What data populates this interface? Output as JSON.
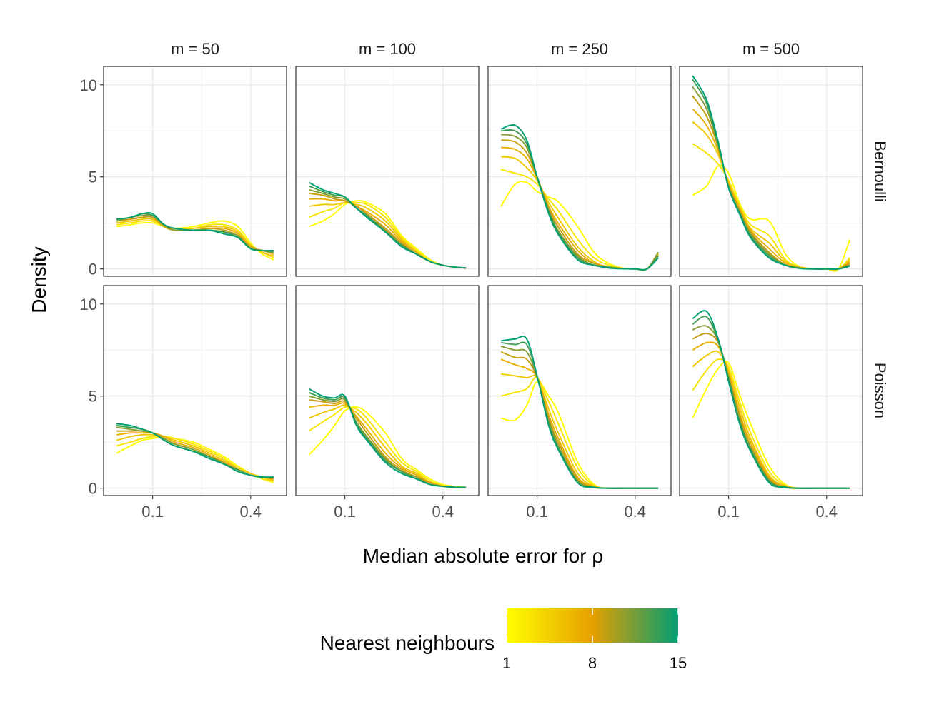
{
  "chart_data": {
    "type": "line",
    "kind": "faceted density curves",
    "xlabel": "Median absolute error for ρ",
    "ylabel": "Density",
    "x_scale": "sqrt",
    "xlim": [
      0.025,
      0.56
    ],
    "ylim": [
      -0.4,
      11.0
    ],
    "x_ticks": [
      0.1,
      0.4
    ],
    "x_tick_labels": [
      "0.1",
      "0.4"
    ],
    "x_minor_ticks": [
      0.025,
      0.225
    ],
    "y_ticks": [
      0,
      5,
      10
    ],
    "y_tick_labels": [
      "0",
      "5",
      "10"
    ],
    "columns": [
      "m = 50",
      "m = 100",
      "m = 250",
      "m = 500"
    ],
    "rows": [
      "Bernoulli",
      "Poisson"
    ],
    "legend": {
      "title": "Nearest neighbours",
      "min": 1,
      "max": 15,
      "breaks": [
        1,
        8,
        15
      ],
      "break_labels": [
        "1",
        "8",
        "15"
      ],
      "colors": [
        "#ffff00",
        "#e69f00",
        "#009e73"
      ]
    },
    "k_values": [
      1,
      3,
      5,
      7,
      9,
      11,
      13,
      15
    ],
    "x_points": [
      0.04,
      0.06,
      0.08,
      0.1,
      0.125,
      0.15,
      0.2,
      0.25,
      0.3,
      0.35,
      0.4,
      0.45,
      0.5
    ],
    "panels": [
      {
        "row": "Bernoulli",
        "col": "m = 50",
        "curves": [
          [
            2.3,
            2.4,
            2.5,
            2.5,
            2.3,
            2.2,
            2.3,
            2.5,
            2.6,
            2.3,
            1.4,
            0.8,
            0.5
          ],
          [
            2.4,
            2.5,
            2.6,
            2.6,
            2.3,
            2.2,
            2.2,
            2.4,
            2.4,
            2.1,
            1.3,
            0.9,
            0.6
          ],
          [
            2.5,
            2.6,
            2.7,
            2.7,
            2.3,
            2.1,
            2.2,
            2.3,
            2.3,
            2.0,
            1.3,
            0.9,
            0.7
          ],
          [
            2.6,
            2.7,
            2.8,
            2.8,
            2.3,
            2.1,
            2.1,
            2.2,
            2.2,
            1.9,
            1.2,
            1.0,
            0.8
          ],
          [
            2.6,
            2.7,
            2.8,
            2.8,
            2.3,
            2.1,
            2.1,
            2.2,
            2.1,
            1.8,
            1.2,
            1.0,
            0.9
          ],
          [
            2.6,
            2.8,
            2.9,
            2.9,
            2.4,
            2.1,
            2.1,
            2.1,
            2.0,
            1.8,
            1.1,
            1.0,
            0.9
          ],
          [
            2.7,
            2.8,
            3.0,
            2.9,
            2.4,
            2.2,
            2.1,
            2.1,
            2.0,
            1.7,
            1.1,
            1.0,
            0.9
          ],
          [
            2.7,
            2.8,
            3.0,
            3.0,
            2.4,
            2.2,
            2.1,
            2.1,
            1.9,
            1.7,
            1.1,
            1.0,
            1.0
          ]
        ]
      },
      {
        "row": "Bernoulli",
        "col": "m = 100",
        "curves": [
          [
            2.3,
            2.6,
            3.0,
            3.5,
            3.7,
            3.6,
            3.0,
            1.8,
            1.1,
            0.5,
            0.2,
            0.1,
            0.05
          ],
          [
            2.8,
            3.1,
            3.3,
            3.6,
            3.6,
            3.5,
            2.8,
            1.7,
            1.0,
            0.4,
            0.2,
            0.1,
            0.05
          ],
          [
            3.4,
            3.5,
            3.5,
            3.6,
            3.5,
            3.3,
            2.6,
            1.6,
            0.9,
            0.4,
            0.2,
            0.1,
            0.05
          ],
          [
            3.8,
            3.8,
            3.7,
            3.7,
            3.4,
            3.1,
            2.4,
            1.5,
            0.9,
            0.4,
            0.2,
            0.1,
            0.05
          ],
          [
            4.1,
            4.0,
            3.8,
            3.7,
            3.4,
            3.0,
            2.2,
            1.4,
            0.8,
            0.4,
            0.2,
            0.1,
            0.05
          ],
          [
            4.3,
            4.1,
            3.9,
            3.8,
            3.3,
            2.9,
            2.1,
            1.3,
            0.8,
            0.4,
            0.2,
            0.1,
            0.05
          ],
          [
            4.5,
            4.2,
            4.0,
            3.9,
            3.3,
            2.9,
            2.0,
            1.3,
            0.8,
            0.4,
            0.2,
            0.1,
            0.05
          ],
          [
            4.7,
            4.3,
            4.1,
            3.9,
            3.3,
            2.8,
            2.0,
            1.2,
            0.8,
            0.4,
            0.2,
            0.1,
            0.05
          ]
        ]
      },
      {
        "row": "Bernoulli",
        "col": "m = 250",
        "curves": [
          [
            3.4,
            4.6,
            4.7,
            4.2,
            3.9,
            3.6,
            2.3,
            0.9,
            0.3,
            0.05,
            0.0,
            0.0,
            0.8
          ],
          [
            5.4,
            5.2,
            5.0,
            4.6,
            3.8,
            3.1,
            1.6,
            0.6,
            0.2,
            0.03,
            0.0,
            0.0,
            0.7
          ],
          [
            6.1,
            6.0,
            5.5,
            4.8,
            3.6,
            2.7,
            1.2,
            0.4,
            0.1,
            0.03,
            0.0,
            0.0,
            0.8
          ],
          [
            6.6,
            6.5,
            6.0,
            4.9,
            3.4,
            2.4,
            1.0,
            0.3,
            0.1,
            0.02,
            0.0,
            0.0,
            0.8
          ],
          [
            7.0,
            6.9,
            6.3,
            5.0,
            3.3,
            2.2,
            0.8,
            0.3,
            0.1,
            0.02,
            0.0,
            0.0,
            0.9
          ],
          [
            7.3,
            7.2,
            6.6,
            5.0,
            3.2,
            2.0,
            0.7,
            0.2,
            0.1,
            0.02,
            0.0,
            0.0,
            0.9
          ],
          [
            7.5,
            7.5,
            6.8,
            5.0,
            3.1,
            1.9,
            0.6,
            0.2,
            0.1,
            0.02,
            0.0,
            0.0,
            0.7
          ],
          [
            7.6,
            7.8,
            7.0,
            5.0,
            3.0,
            1.8,
            0.5,
            0.2,
            0.05,
            0.01,
            0.0,
            0.0,
            0.6
          ]
        ]
      },
      {
        "row": "Bernoulli",
        "col": "m = 500",
        "curves": [
          [
            4.0,
            4.5,
            5.6,
            5.2,
            3.5,
            2.7,
            2.6,
            0.8,
            0.1,
            0.0,
            0.0,
            0.0,
            1.6
          ],
          [
            6.8,
            6.3,
            5.7,
            4.8,
            3.4,
            2.4,
            1.8,
            0.5,
            0.1,
            0.0,
            0.0,
            0.0,
            0.6
          ],
          [
            8.0,
            7.3,
            6.2,
            4.7,
            3.3,
            2.2,
            1.4,
            0.4,
            0.1,
            0.0,
            0.0,
            0.0,
            0.5
          ],
          [
            8.7,
            7.8,
            6.4,
            4.6,
            3.2,
            2.1,
            1.1,
            0.3,
            0.05,
            0.0,
            0.0,
            0.0,
            0.4
          ],
          [
            9.4,
            8.3,
            6.6,
            4.5,
            3.1,
            2.0,
            0.9,
            0.2,
            0.05,
            0.0,
            0.0,
            0.0,
            0.3
          ],
          [
            9.9,
            8.7,
            6.7,
            4.5,
            3.0,
            1.9,
            0.8,
            0.2,
            0.05,
            0.0,
            0.0,
            0.0,
            0.2
          ],
          [
            10.3,
            9.0,
            6.8,
            4.4,
            3.0,
            1.8,
            0.7,
            0.2,
            0.03,
            0.0,
            0.0,
            0.0,
            0.2
          ],
          [
            10.5,
            9.2,
            6.9,
            4.4,
            2.9,
            1.7,
            0.6,
            0.2,
            0.03,
            0.0,
            0.0,
            0.0,
            0.15
          ]
        ]
      },
      {
        "row": "Poisson",
        "col": "m = 50",
        "curves": [
          [
            1.9,
            2.3,
            2.6,
            2.7,
            2.8,
            2.7,
            2.5,
            2.1,
            1.7,
            1.2,
            0.8,
            0.5,
            0.3
          ],
          [
            2.3,
            2.5,
            2.7,
            2.8,
            2.8,
            2.7,
            2.4,
            2.0,
            1.6,
            1.1,
            0.8,
            0.5,
            0.4
          ],
          [
            2.6,
            2.8,
            2.9,
            2.9,
            2.8,
            2.6,
            2.3,
            1.9,
            1.5,
            1.1,
            0.8,
            0.6,
            0.4
          ],
          [
            2.9,
            3.0,
            3.0,
            3.0,
            2.8,
            2.5,
            2.2,
            1.8,
            1.4,
            1.0,
            0.7,
            0.6,
            0.5
          ],
          [
            3.1,
            3.1,
            3.1,
            3.0,
            2.7,
            2.4,
            2.1,
            1.7,
            1.4,
            1.0,
            0.7,
            0.6,
            0.5
          ],
          [
            3.3,
            3.2,
            3.1,
            3.0,
            2.7,
            2.4,
            2.1,
            1.7,
            1.3,
            1.0,
            0.7,
            0.6,
            0.6
          ],
          [
            3.4,
            3.3,
            3.2,
            3.0,
            2.6,
            2.3,
            2.0,
            1.7,
            1.3,
            1.0,
            0.7,
            0.6,
            0.6
          ],
          [
            3.5,
            3.4,
            3.2,
            3.0,
            2.6,
            2.3,
            2.0,
            1.6,
            1.3,
            0.9,
            0.7,
            0.6,
            0.6
          ]
        ]
      },
      {
        "row": "Poisson",
        "col": "m = 100",
        "curves": [
          [
            1.8,
            2.6,
            3.4,
            4.2,
            4.4,
            4.1,
            3.0,
            1.6,
            1.0,
            0.5,
            0.2,
            0.1,
            0.05
          ],
          [
            3.1,
            3.6,
            4.0,
            4.4,
            4.3,
            3.8,
            2.5,
            1.4,
            0.9,
            0.4,
            0.15,
            0.1,
            0.05
          ],
          [
            3.8,
            4.1,
            4.3,
            4.5,
            4.1,
            3.5,
            2.2,
            1.2,
            0.8,
            0.3,
            0.1,
            0.05,
            0.05
          ],
          [
            4.4,
            4.5,
            4.5,
            4.6,
            3.9,
            3.2,
            1.9,
            1.1,
            0.7,
            0.3,
            0.1,
            0.05,
            0.05
          ],
          [
            4.8,
            4.7,
            4.6,
            4.7,
            3.8,
            3.0,
            1.7,
            1.0,
            0.6,
            0.3,
            0.1,
            0.05,
            0.05
          ],
          [
            5.0,
            4.8,
            4.7,
            4.8,
            3.6,
            2.8,
            1.6,
            0.9,
            0.6,
            0.2,
            0.1,
            0.05,
            0.05
          ],
          [
            5.2,
            4.9,
            4.8,
            4.9,
            3.5,
            2.7,
            1.5,
            0.9,
            0.5,
            0.2,
            0.1,
            0.05,
            0.05
          ],
          [
            5.4,
            5.0,
            4.9,
            5.0,
            3.4,
            2.6,
            1.4,
            0.8,
            0.5,
            0.2,
            0.1,
            0.05,
            0.05
          ]
        ]
      },
      {
        "row": "Poisson",
        "col": "m = 250",
        "curves": [
          [
            3.8,
            3.7,
            4.5,
            5.8,
            5.0,
            4.0,
            1.4,
            0.2,
            0.0,
            0.0,
            0.0,
            0.0,
            0.0
          ],
          [
            5.0,
            5.2,
            5.4,
            6.0,
            4.7,
            3.4,
            1.1,
            0.15,
            0.0,
            0.0,
            0.0,
            0.0,
            0.0
          ],
          [
            6.2,
            6.1,
            6.0,
            6.0,
            4.3,
            2.9,
            0.8,
            0.1,
            0.0,
            0.0,
            0.0,
            0.0,
            0.0
          ],
          [
            7.0,
            6.7,
            6.5,
            6.0,
            4.0,
            2.6,
            0.6,
            0.1,
            0.0,
            0.0,
            0.0,
            0.0,
            0.0
          ],
          [
            7.4,
            7.1,
            7.0,
            6.0,
            3.8,
            2.4,
            0.5,
            0.05,
            0.0,
            0.0,
            0.0,
            0.0,
            0.0
          ],
          [
            7.7,
            7.5,
            7.4,
            6.0,
            3.7,
            2.2,
            0.4,
            0.05,
            0.0,
            0.0,
            0.0,
            0.0,
            0.0
          ],
          [
            7.9,
            7.8,
            7.8,
            6.1,
            3.5,
            2.1,
            0.3,
            0.05,
            0.0,
            0.0,
            0.0,
            0.0,
            0.0
          ],
          [
            8.0,
            8.1,
            8.1,
            6.1,
            3.4,
            2.0,
            0.3,
            0.05,
            0.0,
            0.0,
            0.0,
            0.0,
            0.0
          ]
        ]
      },
      {
        "row": "Poisson",
        "col": "m = 500",
        "curves": [
          [
            3.8,
            5.4,
            6.5,
            6.8,
            5.0,
            3.5,
            1.2,
            0.2,
            0.0,
            0.0,
            0.0,
            0.0,
            0.0
          ],
          [
            5.3,
            6.4,
            7.0,
            6.6,
            4.6,
            3.0,
            0.9,
            0.15,
            0.0,
            0.0,
            0.0,
            0.0,
            0.0
          ],
          [
            6.6,
            7.2,
            7.4,
            6.4,
            4.3,
            2.7,
            0.7,
            0.1,
            0.0,
            0.0,
            0.0,
            0.0,
            0.0
          ],
          [
            7.5,
            7.9,
            7.7,
            6.2,
            4.0,
            2.5,
            0.6,
            0.1,
            0.0,
            0.0,
            0.0,
            0.0,
            0.0
          ],
          [
            8.1,
            8.4,
            7.9,
            6.1,
            3.8,
            2.3,
            0.5,
            0.05,
            0.0,
            0.0,
            0.0,
            0.0,
            0.0
          ],
          [
            8.6,
            8.8,
            8.0,
            6.0,
            3.6,
            2.2,
            0.4,
            0.05,
            0.0,
            0.0,
            0.0,
            0.0,
            0.0
          ],
          [
            8.9,
            9.3,
            8.0,
            5.9,
            3.5,
            2.1,
            0.4,
            0.05,
            0.0,
            0.0,
            0.0,
            0.0,
            0.0
          ],
          [
            9.2,
            9.6,
            8.1,
            5.8,
            3.4,
            2.0,
            0.3,
            0.05,
            0.0,
            0.0,
            0.0,
            0.0,
            0.0
          ]
        ]
      }
    ]
  }
}
